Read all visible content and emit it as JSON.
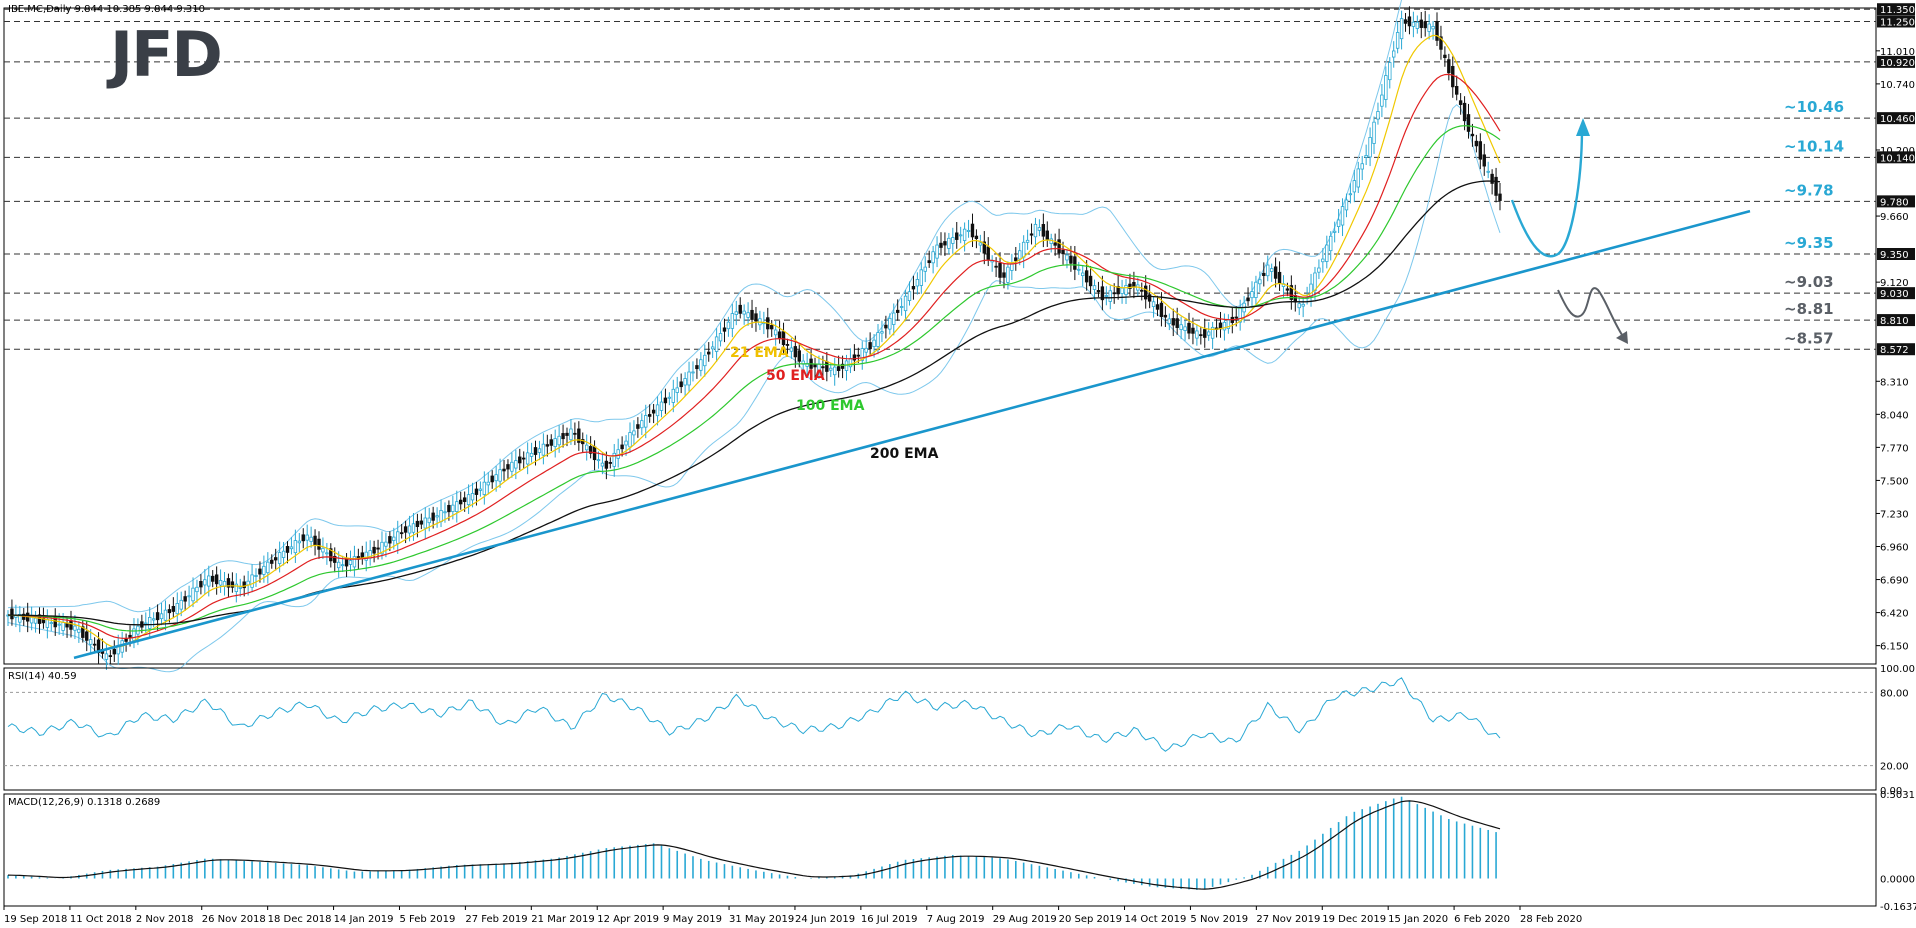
{
  "logo": "JFD",
  "chart_data": [
    {
      "type": "candlestick",
      "title": "IBE.MC,Daily  9.844 10.385 9.844 9.310",
      "price_ticks": [
        "11.010",
        "10.740",
        "10.200",
        "9.660",
        "9.120",
        "8.310",
        "8.040",
        "7.770",
        "7.500",
        "7.230",
        "6.960",
        "6.690",
        "6.420",
        "6.150"
      ],
      "price_markers": [
        "11.350",
        "11.250",
        "10.920",
        "10.460",
        "10.140",
        "9.780",
        "9.350",
        "9.030",
        "8.810",
        "8.572"
      ],
      "ylim": [
        6.0,
        11.36
      ],
      "x_labels": [
        "19 Sep 2018",
        "11 Oct 2018",
        "2 Nov 2018",
        "26 Nov 2018",
        "18 Dec 2018",
        "14 Jan 2019",
        "5 Feb 2019",
        "27 Feb 2019",
        "21 Mar 2019",
        "12 Apr 2019",
        "9 May 2019",
        "31 May 2019",
        "24 Jun 2019",
        "16 Jul 2019",
        "7 Aug 2019",
        "29 Aug 2019",
        "20 Sep 2019",
        "14 Oct 2019",
        "5 Nov 2019",
        "27 Nov 2019",
        "19 Dec 2019",
        "15 Jan 2020",
        "6 Feb 2020",
        "28 Feb 2020"
      ],
      "horizontal_levels": [
        {
          "label": "~10.46",
          "value": 10.46,
          "color": "#29a8d4"
        },
        {
          "label": "~10.14",
          "value": 10.14,
          "color": "#29a8d4"
        },
        {
          "label": "~9.78",
          "value": 9.78,
          "color": "#29a8d4"
        },
        {
          "label": "~9.35",
          "value": 9.35,
          "color": "#29a8d4"
        },
        {
          "label": "~9.03",
          "value": 9.03,
          "color": "#5a5f66"
        },
        {
          "label": "~8.81",
          "value": 8.81,
          "color": "#5a5f66"
        },
        {
          "label": "~8.57",
          "value": 8.57,
          "color": "#5a5f66"
        }
      ],
      "moving_averages": [
        {
          "label": "21 EMA",
          "color": "#f0c800"
        },
        {
          "label": "50 EMA",
          "color": "#e02020"
        },
        {
          "label": "100 EMA",
          "color": "#2ec82e"
        },
        {
          "label": "200 EMA",
          "color": "#111111"
        }
      ],
      "key_prices": [
        6.4,
        6.35,
        6.3,
        6.05,
        6.32,
        6.45,
        6.7,
        6.62,
        6.85,
        7.05,
        6.8,
        6.92,
        7.1,
        7.22,
        7.38,
        7.6,
        7.75,
        7.9,
        7.6,
        7.95,
        8.2,
        8.5,
        8.9,
        8.75,
        8.45,
        8.4,
        8.6,
        8.95,
        9.4,
        9.55,
        9.15,
        9.58,
        9.3,
        9.0,
        9.1,
        8.8,
        8.68,
        8.82,
        9.25,
        8.9,
        9.55,
        10.2,
        11.25,
        11.2,
        10.4,
        9.78
      ],
      "trendline_start": 6.05,
      "trendline_end": 9.7,
      "colors": {
        "candle": "#29a8d4",
        "bear": "#111111",
        "bollinger": "#7ec8ec",
        "trendline": "#1a96cc",
        "arrow": "#29a8d4",
        "arrow_down": "#5a5f66"
      }
    },
    {
      "type": "line",
      "title": "RSI(14) 40.59",
      "ticks": [
        "100.00",
        "80.00",
        "20.00",
        "0.00"
      ],
      "ylim": [
        0,
        100
      ],
      "levels": [
        80,
        20
      ],
      "key_values": [
        52,
        47,
        56,
        43,
        61,
        58,
        73,
        51,
        63,
        71,
        56,
        66,
        70,
        62,
        72,
        53,
        68,
        51,
        78,
        66,
        47,
        58,
        76,
        58,
        49,
        52,
        63,
        79,
        68,
        71,
        57,
        45,
        53,
        41,
        49,
        33,
        46,
        39,
        69,
        48,
        77,
        82,
        90,
        57,
        62,
        41
      ],
      "color": "#29a8d4"
    },
    {
      "type": "histogram",
      "title": "MACD(12,26,9) 0.1318 0.2689",
      "ticks": [
        "0.5031",
        "0.0000",
        "-0.1637"
      ],
      "ylim": [
        -0.1637,
        0.5031
      ],
      "key_values": [
        0.02,
        0.0,
        0.05,
        0.07,
        0.12,
        0.1,
        0.08,
        0.04,
        0.05,
        0.08,
        0.09,
        0.12,
        0.18,
        0.21,
        0.11,
        0.05,
        0.0,
        0.02,
        0.11,
        0.14,
        0.12,
        0.06,
        0.0,
        -0.05,
        -0.07,
        0.02,
        0.17,
        0.39,
        0.49,
        0.35,
        0.27
      ],
      "color": "#29a8d4"
    }
  ]
}
